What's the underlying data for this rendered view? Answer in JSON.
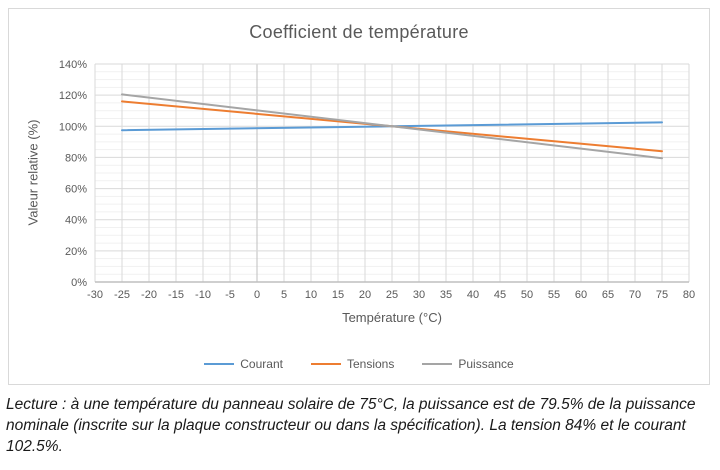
{
  "chart_data": {
    "type": "line",
    "title": "Coefficient de température",
    "xlabel": "Température (°C)",
    "ylabel": "Valeur relative (%)",
    "xlim": [
      -30,
      80
    ],
    "ylim_percent": [
      0,
      140
    ],
    "grid": true,
    "legend_position": "bottom",
    "x_ticks": [
      -30,
      -25,
      -20,
      -15,
      -10,
      -5,
      0,
      5,
      10,
      15,
      20,
      25,
      30,
      35,
      40,
      45,
      50,
      55,
      60,
      65,
      70,
      75,
      80
    ],
    "y_ticks_percent": [
      0,
      20,
      40,
      60,
      80,
      100,
      120,
      140
    ],
    "y_tick_suffix": "%",
    "y_minor_step_percent": 5,
    "series": [
      {
        "name": "Courant",
        "color": "#5B9BD5",
        "points": [
          [
            -25,
            97.5
          ],
          [
            25,
            100
          ],
          [
            75,
            102.5
          ]
        ]
      },
      {
        "name": "Tensions",
        "color": "#ED7D31",
        "points": [
          [
            -25,
            116.0
          ],
          [
            25,
            100
          ],
          [
            75,
            84.0
          ]
        ]
      },
      {
        "name": "Puissance",
        "color": "#A5A5A5",
        "points": [
          [
            -25,
            120.5
          ],
          [
            25,
            100
          ],
          [
            75,
            79.5
          ]
        ]
      }
    ],
    "colors": {
      "title_text": "#595959",
      "tick_text": "#595959",
      "grid_major": "#d9d9d9",
      "grid_minor": "#f1f1f1",
      "axis_line": "#bfbfbf",
      "card_border": "#d9d9d9",
      "background": "#ffffff"
    }
  },
  "caption": {
    "text": "Lecture : à une température du panneau solaire de 75°C, la puissance est de 79.5% de la puissance nominale (inscrite sur la plaque constructeur ou dans la spécification). La tension 84% et le courant 102.5%."
  }
}
